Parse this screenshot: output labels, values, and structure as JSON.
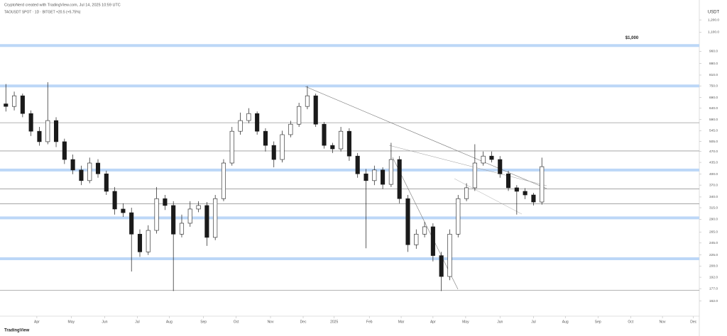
{
  "chart_data": {
    "type": "candlestick",
    "header": "CryptoNerd created with TradingView.com, Jul 14, 2025 10:59 UTC",
    "subtitle": "TAOUSDT SPOT · 1D · BITGET  +20.5 (+5.75%)",
    "unit": "USDT",
    "footer": "TradingView",
    "annotation": {
      "text": "$1,000",
      "value": 1000
    },
    "log_scale": true,
    "up_color": "#ffffff",
    "down_color": "#1a1a1a",
    "edge_color": "#1a1a1a",
    "xlim": [
      -0.7,
      82.8
    ],
    "ylim": [
      150,
      1250
    ],
    "xticks": [
      {
        "value": 3.7,
        "label": "Apr"
      },
      {
        "value": 7.8,
        "label": "May"
      },
      {
        "value": 11.8,
        "label": "Jun"
      },
      {
        "value": 15.7,
        "label": "Jul"
      },
      {
        "value": 19.5,
        "label": "Aug"
      },
      {
        "value": 23.6,
        "label": "Sep"
      },
      {
        "value": 27.5,
        "label": "Oct"
      },
      {
        "value": 31.6,
        "label": "Nov"
      },
      {
        "value": 35.5,
        "label": "Dec"
      },
      {
        "value": 39.2,
        "label": "2025"
      },
      {
        "value": 43.4,
        "label": "Feb"
      },
      {
        "value": 47.2,
        "label": "Mar"
      },
      {
        "value": 51.0,
        "label": "Apr"
      },
      {
        "value": 54.9,
        "label": "May"
      },
      {
        "value": 59.0,
        "label": "Jun"
      },
      {
        "value": 63.0,
        "label": "Jul"
      },
      {
        "value": 66.8,
        "label": "Aug"
      },
      {
        "value": 70.7,
        "label": "Sep"
      },
      {
        "value": 74.6,
        "label": "Oct"
      },
      {
        "value": 78.4,
        "label": "Nov"
      },
      {
        "value": 82.1,
        "label": "Dec"
      }
    ],
    "yticks": [
      {
        "value": 1200,
        "label": "1,200.0"
      },
      {
        "value": 1100,
        "label": "1,100.0"
      },
      {
        "value": 960,
        "label": "960.0"
      },
      {
        "value": 880,
        "label": "880.0"
      },
      {
        "value": 810,
        "label": "810.0"
      },
      {
        "value": 750,
        "label": "750.0"
      },
      {
        "value": 690,
        "label": "690.0"
      },
      {
        "value": 640,
        "label": "640.0"
      },
      {
        "value": 590,
        "label": "590.0"
      },
      {
        "value": 545,
        "label": "545.0"
      },
      {
        "value": 505,
        "label": "505.0"
      },
      {
        "value": 470,
        "label": "470.0"
      },
      {
        "value": 435,
        "label": "435.0"
      },
      {
        "value": 400,
        "label": "400.0"
      },
      {
        "value": 370,
        "label": "370.0"
      },
      {
        "value": 340,
        "label": "340.0"
      },
      {
        "value": 315,
        "label": "315.0"
      },
      {
        "value": 290,
        "label": "290.0"
      },
      {
        "value": 265,
        "label": "265.0"
      },
      {
        "value": 245,
        "label": "245.0"
      },
      {
        "value": 225,
        "label": "225.0"
      },
      {
        "value": 208,
        "label": "208.0"
      },
      {
        "value": 192,
        "label": "192.0"
      },
      {
        "value": 177,
        "label": "177.0"
      },
      {
        "value": 162,
        "label": "162.0"
      }
    ],
    "levels": [
      {
        "value": 1000,
        "color": "#bcd7f7"
      },
      {
        "value": 750,
        "color": "#bcd7f7"
      },
      {
        "value": 577,
        "color": "#9a9a9a"
      },
      {
        "value": 472,
        "color": "#9a9a9a"
      },
      {
        "value": 412,
        "color": "#bcd7f7"
      },
      {
        "value": 360,
        "color": "#9a9a9a"
      },
      {
        "value": 324,
        "color": "#9a9a9a"
      },
      {
        "value": 293,
        "color": "#bcd7f7"
      },
      {
        "value": 219,
        "color": "#bcd7f7"
      },
      {
        "value": 175,
        "color": "#9a9a9a"
      }
    ],
    "open": [
      660,
      648,
      699,
      616,
      543,
      504,
      586,
      504,
      444,
      412,
      382,
      433,
      401,
      354,
      312,
      304,
      261,
      230,
      268,
      336,
      320,
      261,
      282,
      312,
      320,
      255,
      336,
      433,
      543,
      586,
      616,
      543,
      491,
      444,
      530,
      571,
      648,
      699,
      571,
      491,
      479,
      543,
      455,
      401,
      382,
      412,
      372,
      444,
      336,
      242,
      261,
      275,
      224,
      193,
      261,
      336,
      363,
      433,
      455,
      444,
      401,
      363,
      354,
      345,
      328
    ],
    "high": [
      760,
      720,
      710,
      630,
      560,
      770,
      600,
      515,
      460,
      425,
      450,
      445,
      410,
      365,
      325,
      315,
      270,
      278,
      365,
      345,
      330,
      300,
      330,
      330,
      328,
      345,
      445,
      560,
      620,
      640,
      625,
      555,
      505,
      545,
      585,
      665,
      750,
      710,
      580,
      500,
      560,
      555,
      465,
      415,
      425,
      420,
      500,
      455,
      345,
      270,
      285,
      282,
      230,
      270,
      345,
      375,
      495,
      470,
      470,
      455,
      410,
      370,
      362,
      350,
      450
    ],
    "low": [
      625,
      630,
      600,
      525,
      490,
      495,
      485,
      430,
      400,
      370,
      375,
      390,
      345,
      300,
      295,
      200,
      222,
      225,
      262,
      310,
      174,
      255,
      275,
      305,
      240,
      250,
      330,
      425,
      530,
      575,
      530,
      470,
      420,
      435,
      520,
      560,
      635,
      560,
      480,
      465,
      470,
      440,
      390,
      236,
      370,
      360,
      365,
      325,
      230,
      235,
      255,
      215,
      174,
      188,
      255,
      330,
      355,
      425,
      435,
      390,
      355,
      300,
      335,
      320,
      322
    ],
    "close": [
      648,
      699,
      616,
      543,
      504,
      586,
      504,
      444,
      412,
      382,
      433,
      401,
      354,
      312,
      304,
      261,
      230,
      268,
      336,
      320,
      261,
      282,
      312,
      320,
      255,
      336,
      433,
      543,
      586,
      616,
      543,
      491,
      444,
      530,
      571,
      648,
      699,
      571,
      491,
      479,
      543,
      455,
      401,
      382,
      412,
      372,
      444,
      336,
      242,
      261,
      275,
      224,
      193,
      261,
      336,
      363,
      433,
      455,
      444,
      401,
      363,
      354,
      345,
      328,
      422
    ]
  }
}
